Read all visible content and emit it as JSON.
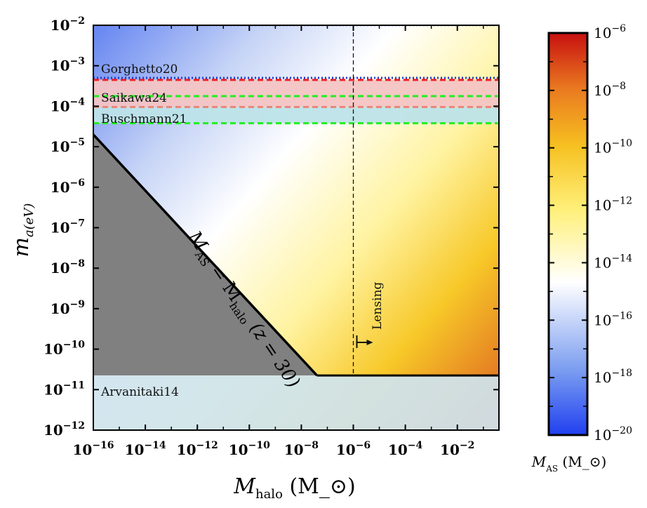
{
  "chart_data": {
    "type": "heatmap",
    "title": "",
    "xlabel": "M_halo (M_⊙)",
    "ylabel": "m_a(eV)",
    "x_scale": "log",
    "y_scale": "log",
    "xlim_exp": [
      -16,
      -0.4
    ],
    "ylim_exp": [
      -12,
      -2
    ],
    "x_ticks": [
      {
        "exp": -16,
        "label": "10",
        "sup": "−16"
      },
      {
        "exp": -14,
        "label": "10",
        "sup": "−14"
      },
      {
        "exp": -12,
        "label": "10",
        "sup": "−12"
      },
      {
        "exp": -10,
        "label": "10",
        "sup": "−10"
      },
      {
        "exp": -8,
        "label": "10",
        "sup": "−8"
      },
      {
        "exp": -6,
        "label": "10",
        "sup": "−6"
      },
      {
        "exp": -4,
        "label": "10",
        "sup": "−4"
      },
      {
        "exp": -2,
        "label": "10",
        "sup": "−2"
      }
    ],
    "y_ticks": [
      {
        "exp": -2,
        "label": "10",
        "sup": "−2"
      },
      {
        "exp": -3,
        "label": "10",
        "sup": "−3"
      },
      {
        "exp": -4,
        "label": "10",
        "sup": "−4"
      },
      {
        "exp": -5,
        "label": "10",
        "sup": "−5"
      },
      {
        "exp": -6,
        "label": "10",
        "sup": "−6"
      },
      {
        "exp": -7,
        "label": "10",
        "sup": "−7"
      },
      {
        "exp": -8,
        "label": "10",
        "sup": "−8"
      },
      {
        "exp": -9,
        "label": "10",
        "sup": "−9"
      },
      {
        "exp": -10,
        "label": "10",
        "sup": "−10"
      },
      {
        "exp": -11,
        "label": "10",
        "sup": "−11"
      },
      {
        "exp": -12,
        "label": "10",
        "sup": "−12"
      }
    ],
    "colorbar": {
      "label": "M_AS (M_⊙)",
      "range_exp": [
        -20,
        -6
      ],
      "ticks": [
        {
          "exp": -6,
          "label": "10",
          "sup": "−6"
        },
        {
          "exp": -8,
          "label": "10",
          "sup": "−8"
        },
        {
          "exp": -10,
          "label": "10",
          "sup": "−10"
        },
        {
          "exp": -12,
          "label": "10",
          "sup": "−12"
        },
        {
          "exp": -14,
          "label": "10",
          "sup": "−14"
        },
        {
          "exp": -16,
          "label": "10",
          "sup": "−16"
        },
        {
          "exp": -18,
          "label": "10",
          "sup": "−18"
        },
        {
          "exp": -20,
          "label": "10",
          "sup": "−20"
        }
      ],
      "colors": [
        "#2040f0",
        "#7a9cf0",
        "#ffffff",
        "#fff07a",
        "#f6c020",
        "#ea7a20",
        "#c81010"
      ]
    },
    "constraint_lines": [
      {
        "name": "Gorghetto20",
        "y_exp": -3.3,
        "style": "dotted",
        "color": "#1f3cd0"
      },
      {
        "name": "Saikawa24",
        "y_exp": -3.75,
        "style": "dashed",
        "color": "#22ee22"
      },
      {
        "name": "Buschmann21",
        "y_exp": -4.42,
        "style": "dashed",
        "color": "#22ee22"
      },
      {
        "name": "Gorghetto20-red",
        "y_exp": -3.35,
        "style": "dashed",
        "color": "#ee2222"
      },
      {
        "name": "Saikawa24-red",
        "y_exp": -4.02,
        "style": "dashed",
        "color": "#e88878"
      },
      {
        "name": "top-limit",
        "y_exp": -2,
        "style": "dotted",
        "color": "#1f3cd0"
      }
    ],
    "bands": [
      {
        "name": "red-band",
        "y_exp": [
          -4.02,
          -3.35
        ],
        "color": "#f4c4c4"
      },
      {
        "name": "teal-band",
        "y_exp": [
          -4.42,
          -4.02
        ],
        "color": "#bde3e8"
      },
      {
        "name": "Arvanitaki14",
        "y_exp": [
          -12,
          -10.65
        ],
        "color": "#cfe4ef"
      }
    ],
    "excluded_region": {
      "label_main": "M",
      "label_sub1": "AS",
      "label_mid": " = M",
      "label_sub2": "halo",
      "label_end": " (z = 30)",
      "line_start": {
        "x_exp": -16,
        "y_exp": -4.7
      },
      "line_end": {
        "x_exp": -7.4,
        "y_exp": -10.65
      },
      "color": "#808080"
    },
    "lower_bound": {
      "y_exp": -10.65
    },
    "lensing": {
      "label": "Lensing",
      "x_exp": -6
    }
  }
}
